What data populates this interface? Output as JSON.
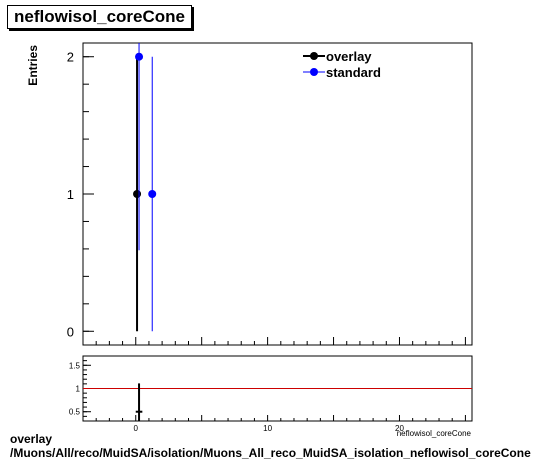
{
  "title": "neflowisol_coreCone",
  "footer_line1": "overlay",
  "footer_line2": "/Muons/All/reco/MuidSA/isolation/Muons_All_reco_MuidSA_isolation_neflowisol_coreCone",
  "chart_data": [
    {
      "type": "scatter",
      "title": "neflowisol_coreCone",
      "ylabel": "Entries",
      "xlabel": "",
      "xlim": [
        -4,
        25.5
      ],
      "ylim": [
        -0.1,
        2.1
      ],
      "y_ticks": [
        0,
        1,
        2
      ],
      "legend_position": "top-right",
      "series": [
        {
          "name": "overlay",
          "color": "#000000",
          "points": [
            {
              "x": 0.25,
              "y": 1,
              "yerr": 1
            }
          ]
        },
        {
          "name": "standard",
          "color": "#0000ff",
          "points": [
            {
              "x": 0.25,
              "y": 2,
              "yerr": 1.41
            },
            {
              "x": 1.25,
              "y": 1,
              "yerr": 1
            }
          ]
        }
      ]
    },
    {
      "type": "scatter",
      "title": "",
      "xlabel": "neflowisol_coreCone",
      "ylabel": "",
      "xlim": [
        -4,
        25.5
      ],
      "ylim": [
        0.3,
        1.7
      ],
      "x_ticks": [
        0,
        10,
        20
      ],
      "y_ticks": [
        0.5,
        1,
        1.5
      ],
      "y_tick_labels": [
        "0.5",
        "1",
        "1.5"
      ],
      "reference_line": {
        "y": 1,
        "color": "#cc0000"
      },
      "series": [
        {
          "name": "ratio",
          "color": "#000000",
          "points": [
            {
              "x": 0.25,
              "y": 0.5,
              "yerr": 0.61,
              "xerr": 0.25
            }
          ]
        }
      ]
    }
  ]
}
